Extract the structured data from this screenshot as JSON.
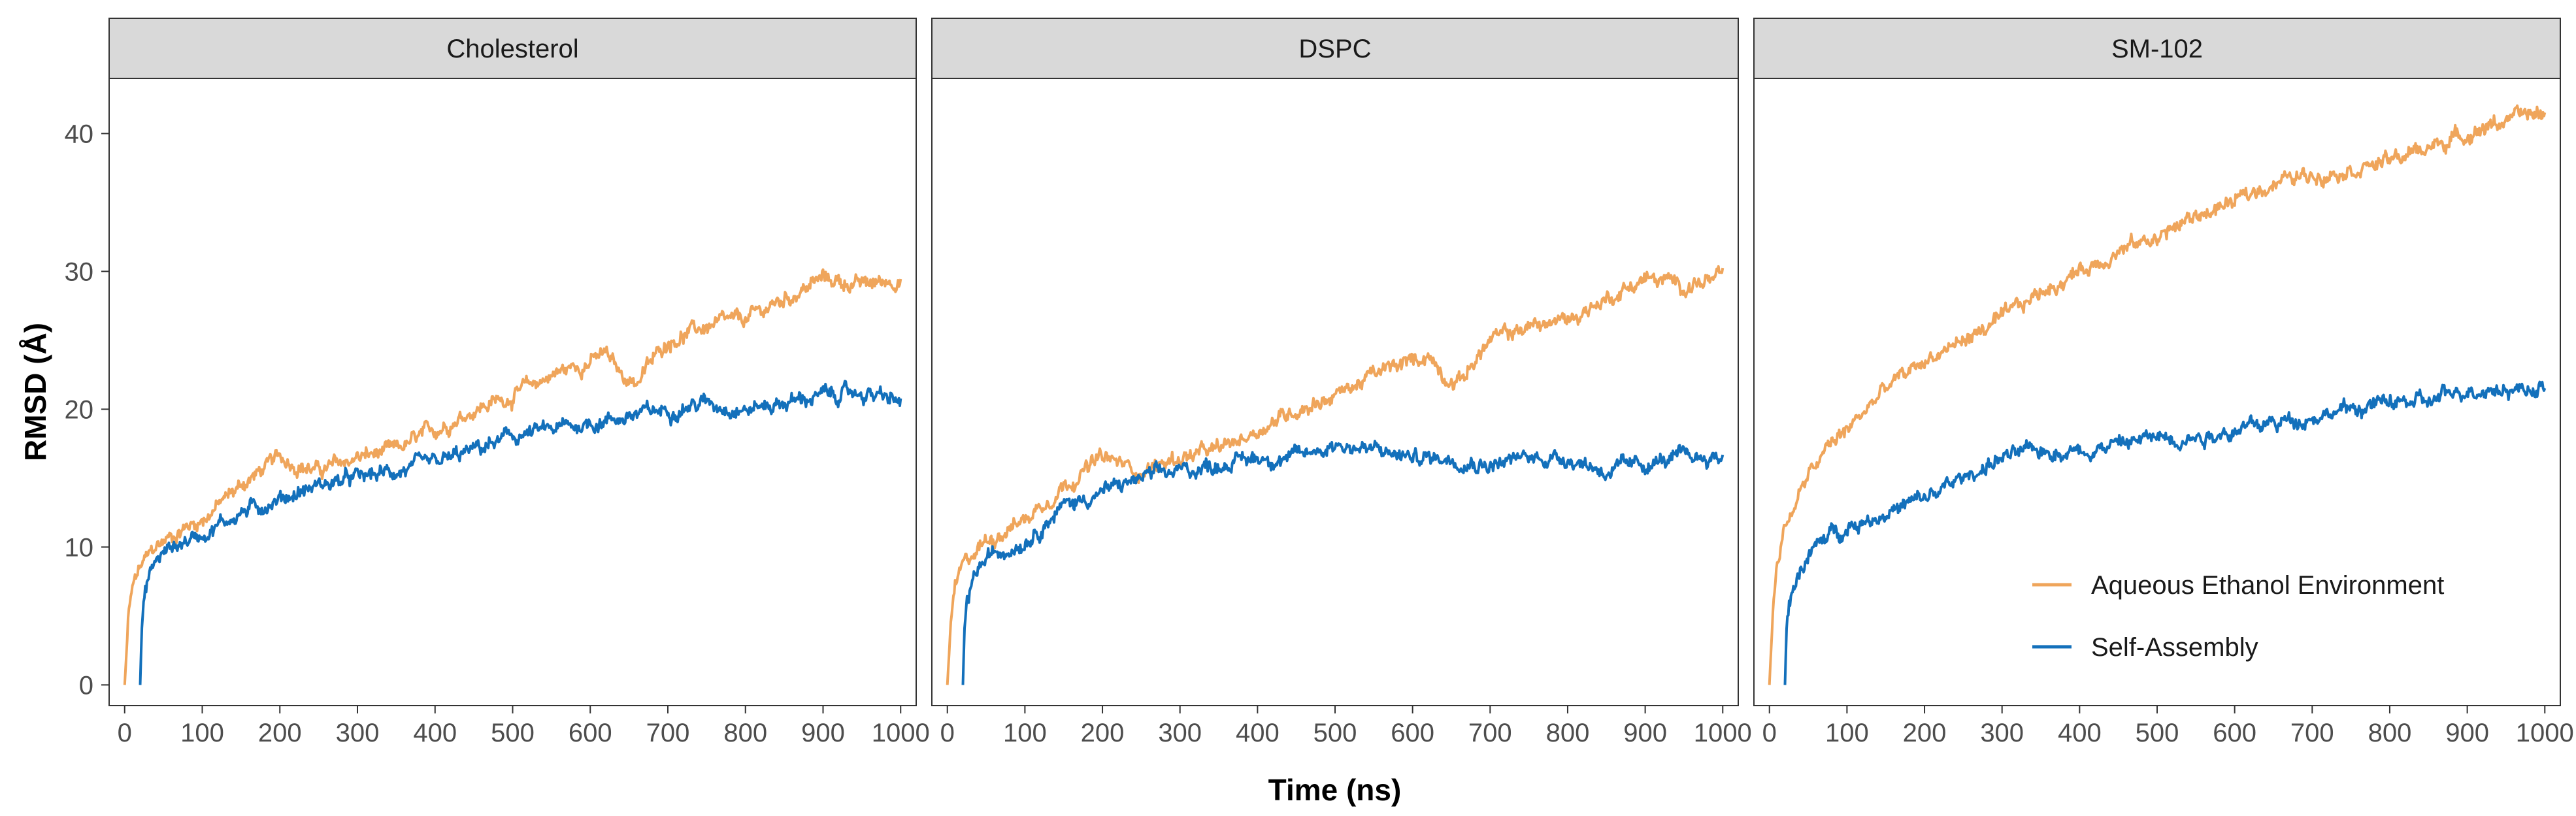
{
  "chart_data": {
    "type": "line",
    "facet_labels": [
      "Cholesterol",
      "DSPC",
      "SM-102"
    ],
    "xlabel": "Time (ns)",
    "ylabel": "RMSD (Å)",
    "xlim": [
      -20,
      1020
    ],
    "ylim": [
      -1.5,
      44
    ],
    "x_ticks": [
      0,
      100,
      200,
      300,
      400,
      500,
      600,
      700,
      800,
      900,
      1000
    ],
    "x_tick_labels": [
      "0",
      "100",
      "200",
      "300",
      "400",
      "500",
      "600",
      "700",
      "800",
      "900",
      "1000"
    ],
    "y_ticks": [
      0,
      10,
      20,
      30,
      40
    ],
    "y_tick_labels": [
      "0",
      "10",
      "20",
      "30",
      "40"
    ],
    "legend_position": "inside-bottom-right of last panel",
    "legend": [
      {
        "name": "Aqueous Ethanol Environment",
        "color": "#EFA55B"
      },
      {
        "name": "Self-Assembly",
        "color": "#1370BB"
      }
    ],
    "panels": [
      {
        "facet": "Cholesterol",
        "series": [
          {
            "name": "Aqueous Ethanol Environment",
            "color": "#EFA55B",
            "start": 0,
            "x": [
              0,
              5,
              10,
              20,
              40,
              60,
              80,
              100,
              150,
              200,
              250,
              300,
              350,
              400,
              450,
              500,
              550,
              600,
              620,
              640,
              660,
              700,
              750,
              800,
              850,
              900,
              950,
              1000
            ],
            "y": [
              0,
              5,
              7,
              8.5,
              10,
              10.8,
              11.5,
              12,
              14.5,
              16.5,
              15.5,
              16.5,
              17,
              18.5,
              20,
              21,
              22.5,
              23.5,
              24,
              22.5,
              22,
              25,
              26,
              26.5,
              28,
              29.5,
              29,
              29.5
            ]
          },
          {
            "name": "Self-Assembly",
            "color": "#1370BB",
            "start": 20,
            "x": [
              20,
              22,
              25,
              30,
              40,
              60,
              80,
              100,
              150,
              200,
              250,
              300,
              350,
              400,
              450,
              500,
              550,
              600,
              650,
              700,
              750,
              800,
              850,
              900,
              950,
              1000
            ],
            "y": [
              0,
              4,
              6,
              7.5,
              9,
              10,
              10.5,
              11,
              12.5,
              13.5,
              14.5,
              15,
              15.5,
              16,
              17,
              18,
              18.5,
              19,
              19.5,
              20,
              20.5,
              20,
              20.5,
              21,
              21.2,
              20.5
            ]
          }
        ]
      },
      {
        "facet": "DSPC",
        "series": [
          {
            "name": "Aqueous Ethanol Environment",
            "color": "#EFA55B",
            "start": 0,
            "x": [
              0,
              5,
              10,
              20,
              40,
              60,
              80,
              100,
              150,
              200,
              250,
              300,
              350,
              400,
              450,
              500,
              550,
              600,
              620,
              640,
              660,
              700,
              750,
              800,
              850,
              900,
              950,
              1000
            ],
            "y": [
              0,
              5,
              7,
              8.5,
              10,
              10.8,
              11.5,
              12,
              14.5,
              16.5,
              15.5,
              16.5,
              17,
              18.5,
              20,
              21,
              22.5,
              23.5,
              24,
              22.5,
              22,
              25,
              26,
              26.5,
              28,
              29.5,
              29,
              29.5
            ]
          },
          {
            "name": "Self-Assembly",
            "color": "#1370BB",
            "start": 20,
            "x": [
              20,
              22,
              25,
              30,
              40,
              60,
              80,
              100,
              150,
              200,
              250,
              300,
              350,
              400,
              450,
              500,
              550,
              600,
              650,
              700,
              750,
              800,
              850,
              900,
              950,
              1000
            ],
            "y": [
              0,
              4,
              6,
              7,
              8.5,
              9.5,
              10,
              10.5,
              13,
              14,
              15,
              15.5,
              16,
              16.5,
              16.5,
              17.5,
              17,
              16.5,
              16.5,
              16,
              16.5,
              16.5,
              15.5,
              16,
              16.5,
              16.5
            ]
          }
        ]
      },
      {
        "facet": "SM-102",
        "series": [
          {
            "name": "Aqueous Ethanol Environment",
            "color": "#EFA55B",
            "start": 0,
            "x": [
              0,
              5,
              10,
              20,
              40,
              60,
              80,
              100,
              150,
              200,
              250,
              300,
              350,
              400,
              450,
              500,
              550,
              600,
              650,
              700,
              750,
              800,
              850,
              900,
              950,
              1000
            ],
            "y": [
              0,
              6,
              9,
              11.5,
              14,
              16,
              17.5,
              18.5,
              21.5,
              23.5,
              25,
              26.5,
              28.5,
              30,
              31.5,
              32.5,
              34,
              35,
              36.5,
              37,
              37.5,
              38,
              39,
              40,
              41,
              41.5
            ]
          },
          {
            "name": "Self-Assembly",
            "color": "#1370BB",
            "start": 20,
            "x": [
              20,
              22,
              25,
              30,
              40,
              60,
              80,
              100,
              150,
              200,
              250,
              300,
              350,
              400,
              450,
              500,
              550,
              600,
              650,
              700,
              750,
              800,
              850,
              900,
              950,
              1000
            ],
            "y": [
              0,
              4,
              5.5,
              7,
              8.5,
              10,
              11,
              11.5,
              12.5,
              13.5,
              15,
              16.5,
              17,
              17,
              17.5,
              18,
              18,
              18.5,
              19,
              19.5,
              20,
              20.5,
              20.5,
              21.5,
              21.5,
              21.5
            ]
          }
        ]
      }
    ]
  }
}
